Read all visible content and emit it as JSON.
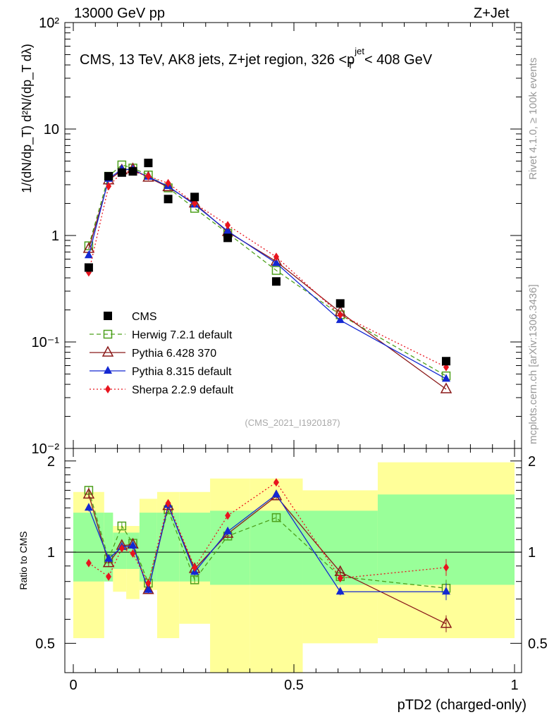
{
  "header": {
    "left": "13000 GeV pp",
    "right": "Z+Jet",
    "rivet": "Rivet 4.1.0, ≥ 100k events",
    "mcplots": "mcplots.cern.ch [arXiv:1306.3436]",
    "ref": "(CMS_2021_I1920187)"
  },
  "chart_data": {
    "type": "scatter",
    "title": "CMS, 13 TeV, AK8 jets, Z+jet region, 326 <p_T^{jet}< 408 GeV",
    "xlabel": "pTD2 (charged-only)",
    "ylabel_top": "1/(dN/dp_T) d²N/(dp_T dλ)",
    "ylabel_ratio": "Ratio to CMS",
    "xlim": [
      0,
      1
    ],
    "ylim_top": [
      0.01,
      100
    ],
    "ylim_ratio": [
      0.4,
      2.2
    ],
    "x_ticks": [
      "0",
      "0.5",
      "1"
    ],
    "y_ticks_top": [
      "10⁻²",
      "10⁻¹",
      "1",
      "10",
      "10²"
    ],
    "y_ticks_ratio": [
      "0.5",
      "1",
      "2"
    ],
    "x": [
      0.035,
      0.08,
      0.11,
      0.135,
      0.17,
      0.215,
      0.275,
      0.35,
      0.46,
      0.605,
      0.845
    ],
    "bin_edges": [
      0,
      0.07,
      0.09,
      0.12,
      0.15,
      0.19,
      0.24,
      0.31,
      0.4,
      0.52,
      0.69,
      1.0
    ],
    "cms": [
      0.5,
      3.6,
      3.9,
      4.0,
      4.8,
      2.2,
      2.3,
      0.95,
      0.37,
      0.23,
      0.066
    ],
    "band_inner": [
      [
        0.8,
        1.35
      ],
      [
        0.8,
        1.35
      ],
      [
        0.88,
        1.16
      ],
      [
        0.88,
        1.16
      ],
      [
        0.8,
        1.35
      ],
      [
        0.8,
        1.35
      ],
      [
        0.8,
        1.35
      ],
      [
        0.78,
        1.37
      ],
      [
        0.78,
        1.37
      ],
      [
        0.78,
        1.37
      ],
      [
        0.78,
        1.55
      ]
    ],
    "band_outer": [
      [
        0.52,
        1.58
      ],
      [
        0.8,
        1.35
      ],
      [
        0.74,
        1.22
      ],
      [
        0.7,
        1.22
      ],
      [
        0.75,
        1.5
      ],
      [
        0.52,
        1.58
      ],
      [
        0.58,
        1.58
      ],
      [
        0.38,
        1.75
      ],
      [
        0.38,
        1.75
      ],
      [
        0.5,
        1.6
      ],
      [
        0.52,
        1.98
      ]
    ],
    "series": [
      {
        "name": "Herwig 7.2.1 default",
        "color": "#4da01c",
        "marker": "open-square",
        "dash": "6,4",
        "values": [
          0.8,
          3.6,
          4.6,
          4.3,
          3.7,
          2.8,
          1.8,
          1.05,
          0.47,
          0.18,
          0.048
        ],
        "ratio": [
          1.6,
          0.95,
          1.22,
          1.07,
          0.79,
          1.38,
          0.81,
          1.13,
          1.3,
          0.83,
          0.76
        ]
      },
      {
        "name": "Pythia 6.428 370",
        "color": "#8b1a1a",
        "marker": "open-triangle",
        "dash": "",
        "values": [
          0.75,
          3.3,
          4.1,
          4.2,
          3.5,
          2.85,
          2.0,
          1.08,
          0.57,
          0.19,
          0.036
        ],
        "ratio": [
          1.55,
          0.92,
          1.05,
          1.06,
          0.75,
          1.42,
          0.88,
          1.15,
          1.53,
          0.86,
          0.58
        ]
      },
      {
        "name": "Pythia 8.315 default",
        "color": "#1428d2",
        "marker": "triangle",
        "dash": "",
        "values": [
          0.65,
          3.4,
          4.2,
          4.15,
          3.55,
          2.9,
          1.95,
          1.1,
          0.55,
          0.16,
          0.045
        ],
        "ratio": [
          1.4,
          0.95,
          1.04,
          1.05,
          0.75,
          1.43,
          0.86,
          1.17,
          1.55,
          0.74,
          0.74
        ]
      },
      {
        "name": "Sherpa 2.2.9 default",
        "color": "#e8141e",
        "marker": "diamond",
        "dash": "2,3",
        "values": [
          0.45,
          2.9,
          3.9,
          4.0,
          3.6,
          3.1,
          2.0,
          1.25,
          0.63,
          0.18,
          0.058
        ],
        "ratio": [
          0.92,
          0.83,
          1.03,
          0.99,
          0.79,
          1.45,
          0.89,
          1.32,
          1.7,
          0.82,
          0.89
        ]
      }
    ]
  }
}
